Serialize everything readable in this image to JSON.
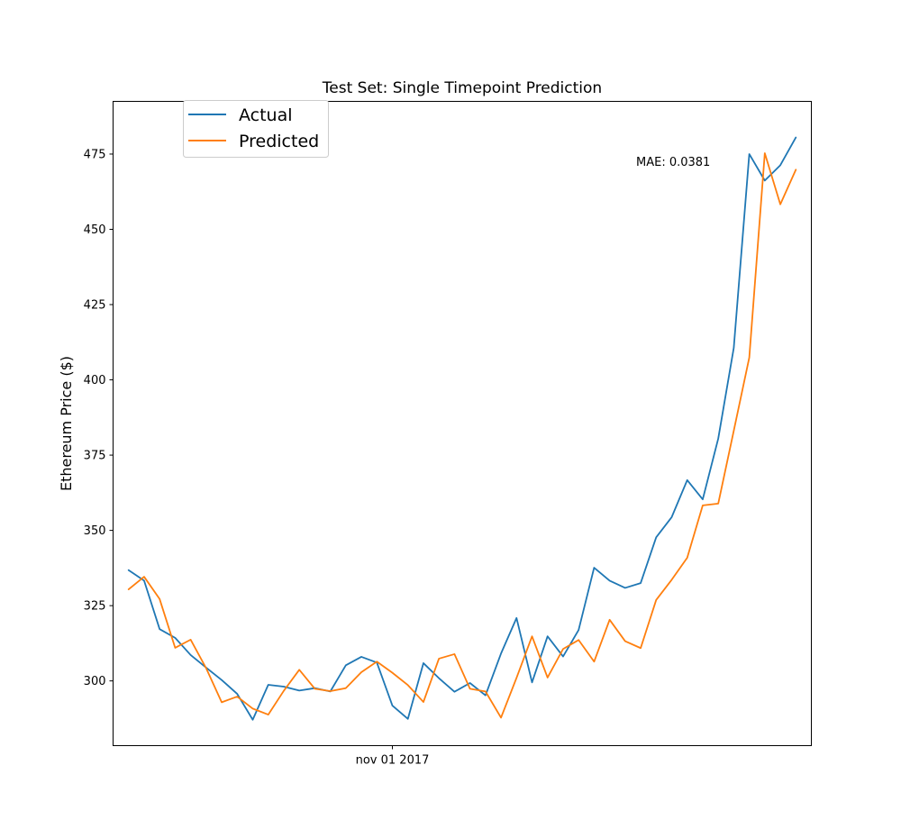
{
  "chart_data": {
    "type": "line",
    "title": "Test Set: Single Timepoint Prediction",
    "xlabel": "",
    "ylabel": "Ethereum Price ($)",
    "x_tick_labels": [
      {
        "label": "nov 01 2017",
        "index": 17
      }
    ],
    "yticks": [
      300,
      325,
      350,
      375,
      400,
      425,
      450,
      475
    ],
    "xlim": [
      -1,
      44
    ],
    "ylim": [
      278.5,
      492.5
    ],
    "grid": false,
    "legend": {
      "location": "top-left",
      "entries": [
        "Actual",
        "Predicted"
      ]
    },
    "annotation": "MAE: 0.0381",
    "series": [
      {
        "name": "Actual",
        "color": "#1f77b4",
        "values": [
          336.8,
          333.3,
          317.2,
          314.3,
          308.6,
          304.4,
          300.3,
          295.7,
          287.1,
          298.7,
          298.1,
          296.8,
          297.6,
          296.5,
          305.2,
          308.0,
          306.1,
          291.8,
          287.4,
          305.9,
          300.9,
          296.4,
          299.3,
          295.2,
          309.1,
          320.9,
          299.5,
          314.8,
          308.1,
          316.9,
          337.6,
          333.3,
          330.9,
          332.5,
          347.7,
          354.4,
          366.7,
          360.3,
          380.5,
          410.6,
          475.0,
          466.2,
          471.3,
          480.5
        ]
      },
      {
        "name": "Predicted",
        "color": "#ff7f0e",
        "values": [
          330.4,
          334.6,
          327.2,
          311.0,
          313.7,
          304.2,
          292.9,
          294.8,
          290.8,
          288.8,
          296.7,
          303.7,
          297.4,
          296.6,
          297.6,
          302.9,
          306.4,
          302.7,
          298.6,
          293.0,
          307.4,
          308.9,
          297.4,
          296.5,
          287.8,
          301.0,
          314.8,
          301.1,
          310.6,
          313.6,
          306.4,
          320.3,
          313.2,
          310.9,
          326.9,
          333.6,
          340.9,
          358.3,
          358.9,
          383.1,
          407.4,
          475.3,
          458.3,
          469.8
        ]
      }
    ]
  }
}
